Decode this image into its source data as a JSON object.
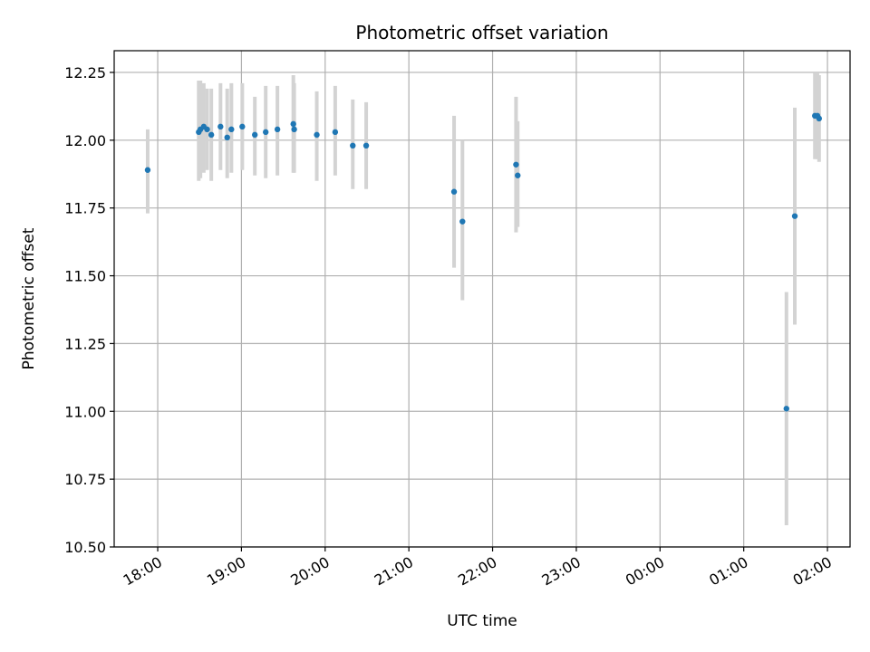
{
  "chart_data": {
    "type": "scatter",
    "title": "Photometric offset variation",
    "xlabel": "UTC time",
    "ylabel": "Photometric offset",
    "grid": true,
    "x_unit": "hours since 18:00 UTC",
    "xlim": [
      -0.52,
      8.27
    ],
    "ylim": [
      10.5,
      12.33
    ],
    "x_ticks": [
      {
        "x": 0,
        "label": "18:00"
      },
      {
        "x": 1,
        "label": "19:00"
      },
      {
        "x": 2,
        "label": "20:00"
      },
      {
        "x": 3,
        "label": "21:00"
      },
      {
        "x": 4,
        "label": "22:00"
      },
      {
        "x": 5,
        "label": "23:00"
      },
      {
        "x": 6,
        "label": "00:00"
      },
      {
        "x": 7,
        "label": "01:00"
      },
      {
        "x": 8,
        "label": "02:00"
      }
    ],
    "y_ticks": [
      {
        "y": 10.5,
        "label": "10.50"
      },
      {
        "y": 10.75,
        "label": "10.75"
      },
      {
        "y": 11.0,
        "label": "11.00"
      },
      {
        "y": 11.25,
        "label": "11.25"
      },
      {
        "y": 11.5,
        "label": "11.50"
      },
      {
        "y": 11.75,
        "label": "11.75"
      },
      {
        "y": 12.0,
        "label": "12.00"
      },
      {
        "y": 12.25,
        "label": "12.25"
      }
    ],
    "series": [
      {
        "name": "offset",
        "color": "#1f77b4",
        "errorbar_color": "#d3d3d3",
        "points": [
          {
            "x": -0.12,
            "y": 11.89,
            "lo": 11.73,
            "hi": 12.04
          },
          {
            "x": 0.49,
            "y": 12.03,
            "lo": 11.85,
            "hi": 12.22
          },
          {
            "x": 0.51,
            "y": 12.04,
            "lo": 11.86,
            "hi": 12.22
          },
          {
            "x": 0.55,
            "y": 12.05,
            "lo": 11.88,
            "hi": 12.21
          },
          {
            "x": 0.59,
            "y": 12.04,
            "lo": 11.89,
            "hi": 12.19
          },
          {
            "x": 0.64,
            "y": 12.02,
            "lo": 11.85,
            "hi": 12.19
          },
          {
            "x": 0.75,
            "y": 12.05,
            "lo": 11.89,
            "hi": 12.21
          },
          {
            "x": 0.83,
            "y": 12.01,
            "lo": 11.86,
            "hi": 12.19
          },
          {
            "x": 0.88,
            "y": 12.04,
            "lo": 11.88,
            "hi": 12.21
          },
          {
            "x": 1.01,
            "y": 12.05,
            "lo": 11.89,
            "hi": 12.21
          },
          {
            "x": 1.16,
            "y": 12.02,
            "lo": 11.87,
            "hi": 12.16
          },
          {
            "x": 1.29,
            "y": 12.03,
            "lo": 11.86,
            "hi": 12.2
          },
          {
            "x": 1.43,
            "y": 12.04,
            "lo": 11.87,
            "hi": 12.2
          },
          {
            "x": 1.62,
            "y": 12.06,
            "lo": 11.88,
            "hi": 12.24
          },
          {
            "x": 1.63,
            "y": 12.04,
            "lo": 11.88,
            "hi": 12.21
          },
          {
            "x": 1.9,
            "y": 12.02,
            "lo": 11.85,
            "hi": 12.18
          },
          {
            "x": 2.12,
            "y": 12.03,
            "lo": 11.87,
            "hi": 12.2
          },
          {
            "x": 2.33,
            "y": 11.98,
            "lo": 11.82,
            "hi": 12.15
          },
          {
            "x": 2.49,
            "y": 11.98,
            "lo": 11.82,
            "hi": 12.14
          },
          {
            "x": 3.54,
            "y": 11.81,
            "lo": 11.53,
            "hi": 12.09
          },
          {
            "x": 3.64,
            "y": 11.7,
            "lo": 11.41,
            "hi": 12.0
          },
          {
            "x": 4.28,
            "y": 11.91,
            "lo": 11.66,
            "hi": 12.16
          },
          {
            "x": 4.3,
            "y": 11.87,
            "lo": 11.68,
            "hi": 12.07
          },
          {
            "x": 7.51,
            "y": 11.01,
            "lo": 10.58,
            "hi": 11.44
          },
          {
            "x": 7.61,
            "y": 11.72,
            "lo": 11.32,
            "hi": 12.12
          },
          {
            "x": 7.85,
            "y": 12.09,
            "lo": 11.93,
            "hi": 12.25
          },
          {
            "x": 7.88,
            "y": 12.09,
            "lo": 11.93,
            "hi": 12.25
          },
          {
            "x": 7.9,
            "y": 12.08,
            "lo": 11.92,
            "hi": 12.24
          }
        ]
      }
    ]
  }
}
